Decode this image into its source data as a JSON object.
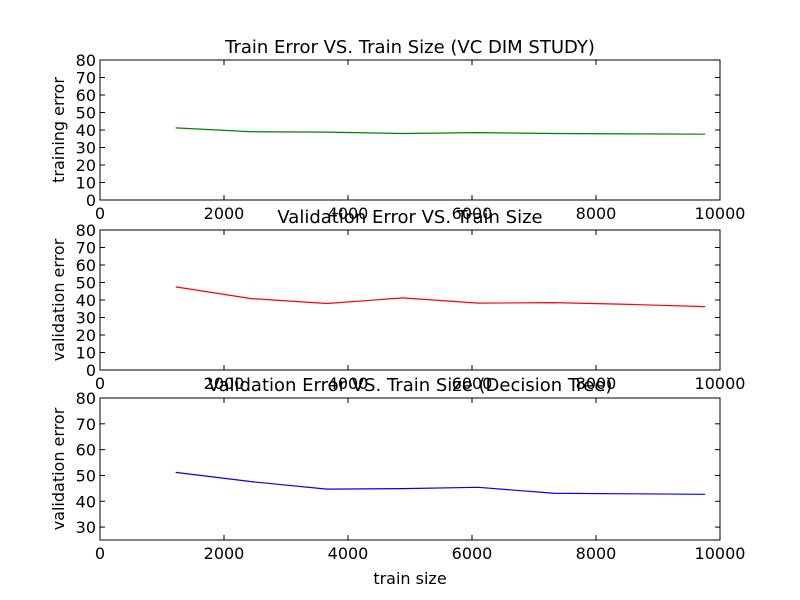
{
  "chart_data": [
    {
      "type": "line",
      "title": "Train Error VS. Train Size (VC DIM STUDY)",
      "xlabel": "",
      "ylabel": "training error",
      "xlim": [
        0,
        10000
      ],
      "ylim": [
        0,
        80
      ],
      "xticks": [
        "0",
        "2000",
        "4000",
        "6000",
        "8000",
        "10000"
      ],
      "yticks": [
        "0",
        "10",
        "20",
        "30",
        "40",
        "50",
        "60",
        "70",
        "80"
      ],
      "grid": false,
      "series": [
        {
          "color": "#008000",
          "x": [
            1220,
            2440,
            3660,
            4880,
            6100,
            7320,
            8540,
            9760
          ],
          "y": [
            41.2,
            39.0,
            38.8,
            38.0,
            38.5,
            38.0,
            37.8,
            37.6
          ]
        }
      ]
    },
    {
      "type": "line",
      "title": "Validation Error VS. Train Size",
      "xlabel": "",
      "ylabel": "validation error",
      "xlim": [
        0,
        10000
      ],
      "ylim": [
        0,
        80
      ],
      "xticks": [
        "0",
        "2000",
        "4000",
        "6000",
        "8000",
        "10000"
      ],
      "yticks": [
        "0",
        "10",
        "20",
        "30",
        "40",
        "50",
        "60",
        "70",
        "80"
      ],
      "grid": false,
      "series": [
        {
          "color": "#ff0000",
          "x": [
            1220,
            2440,
            3660,
            4880,
            6100,
            7320,
            8540,
            9760
          ],
          "y": [
            47.5,
            40.8,
            38.0,
            41.2,
            38.2,
            38.5,
            37.5,
            36.2
          ]
        }
      ]
    },
    {
      "type": "line",
      "title": "Validation Error VS. Train Size (Decision Tree)",
      "xlabel": "train size",
      "ylabel": "validation error",
      "xlim": [
        0,
        10000
      ],
      "ylim": [
        25,
        80
      ],
      "xticks": [
        "0",
        "2000",
        "4000",
        "6000",
        "8000",
        "10000"
      ],
      "yticks": [
        "30",
        "40",
        "50",
        "60",
        "70",
        "80"
      ],
      "grid": false,
      "series": [
        {
          "color": "#0000ff",
          "x": [
            1220,
            2440,
            3660,
            4880,
            6100,
            7320,
            8540,
            9760
          ],
          "y": [
            51.2,
            47.6,
            44.7,
            44.9,
            45.4,
            43.1,
            42.9,
            42.7
          ]
        }
      ]
    }
  ]
}
